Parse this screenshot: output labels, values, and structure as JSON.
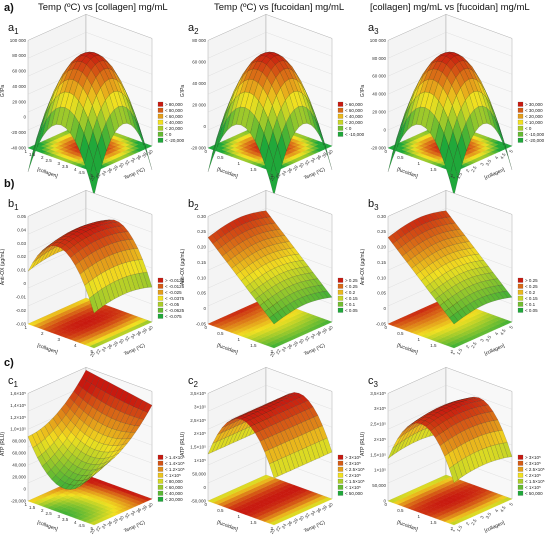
{
  "figure": {
    "section_a": "a)",
    "section_b": "b)",
    "section_c": "c)",
    "columns": [
      "Temp (ºC) vs [collagen] mg/mL",
      "Temp (ºC) vs [fucoidan] mg/mL",
      "[collagen] mg/mL vs [fucoidan] mg/mL"
    ]
  },
  "colors": {
    "high": "#c8190f",
    "mid": "#f2e020",
    "low": "#1fa83a",
    "mesh": "#222222"
  },
  "chart_data": [
    {
      "id": "a1",
      "label": "a",
      "sub": "1",
      "type": "surface",
      "shape": "dome",
      "zlabel": "G'/Pa",
      "xlabel": "[collagen]",
      "ylabel": "Temp (ºC)",
      "zticks": [
        "100 000",
        "80 000",
        "60 000",
        "40 000",
        "20 000",
        "0",
        "-20 000",
        "-40 000"
      ],
      "xticks": [
        "1",
        "1.5",
        "2",
        "2.5",
        "3",
        "3.5",
        "4",
        "4.5",
        "5"
      ],
      "yticks": [
        "20",
        "22",
        "24",
        "26",
        "28",
        "30",
        "32",
        "34",
        "36",
        "38",
        "40"
      ],
      "legend": [
        "> 80,000",
        "< 80,000",
        "< 60,000",
        "< 40,000",
        "< 20,000",
        "< 0",
        "< -20,000"
      ]
    },
    {
      "id": "a2",
      "label": "a",
      "sub": "2",
      "type": "surface",
      "shape": "dome",
      "zlabel": "G'/Pa",
      "xlabel": "[fucoidan]",
      "ylabel": "Temp (ºC)",
      "zticks": [
        "80 000",
        "60 000",
        "40 000",
        "20 000",
        "0",
        "-20 000"
      ],
      "xticks": [
        "0",
        "0.5",
        "1",
        "1.5",
        "2"
      ],
      "yticks": [
        "20",
        "22",
        "24",
        "26",
        "28",
        "30",
        "32",
        "34",
        "36",
        "38",
        "40"
      ],
      "legend": [
        "> 60,000",
        "< 60,000",
        "< 40,000",
        "< 20,000",
        "< 0",
        "< -10,000"
      ]
    },
    {
      "id": "a3",
      "label": "a",
      "sub": "3",
      "type": "surface",
      "shape": "dome",
      "zlabel": "G'/Pa",
      "xlabel": "[fucoidan]",
      "ylabel": "[collagen]",
      "zticks": [
        "100 000",
        "80 000",
        "60 000",
        "40 000",
        "20 000",
        "0",
        "-20 000"
      ],
      "xticks": [
        "0",
        "0.5",
        "1",
        "1.5",
        "2"
      ],
      "yticks": [
        "1",
        "1.5",
        "2",
        "2.5",
        "3",
        "3.5",
        "4",
        "4.5",
        "5"
      ],
      "legend": [
        "> 30,000",
        "< 30,000",
        "< 20,000",
        "< 10,000",
        "< 0",
        "< -10,000",
        "< -20,000"
      ]
    },
    {
      "id": "b1",
      "label": "b",
      "sub": "1",
      "type": "surface",
      "shape": "ridge",
      "zlabel": "Anti-OX (μg/mL)",
      "xlabel": "[collagen]",
      "ylabel": "Temp (ºC)",
      "zticks": [
        "0.05",
        "0.04",
        "0.03",
        "0.02",
        "0.01",
        "0",
        "-0.01",
        "-0.02",
        "-0.03"
      ],
      "xticks": [
        "1",
        "2",
        "3",
        "4",
        "5"
      ],
      "yticks": [
        "20",
        "22",
        "24",
        "26",
        "28",
        "30",
        "32",
        "34",
        "36",
        "38",
        "40"
      ],
      "legend": [
        "> -0.0125",
        "< -0.0125",
        "< -0.025",
        "< -0.0375",
        "< -0.05",
        "< -0.0625",
        "< -0.075"
      ]
    },
    {
      "id": "b2",
      "label": "b",
      "sub": "2",
      "type": "surface",
      "shape": "ramp",
      "zlabel": "Anti-OX (μg/mL)",
      "xlabel": "[fucoidan]",
      "ylabel": "Temp (ºC)",
      "zticks": [
        "0.30",
        "0.25",
        "0.20",
        "0.15",
        "0.10",
        "0.05",
        "0",
        "-0.05"
      ],
      "xticks": [
        "0",
        "0.5",
        "1",
        "1.5",
        "2"
      ],
      "yticks": [
        "20",
        "22",
        "24",
        "26",
        "28",
        "30",
        "32",
        "34",
        "36",
        "38",
        "40"
      ],
      "legend": [
        "> 0.25",
        "< 0.25",
        "< 0.2",
        "< 0.15",
        "< 0.1",
        "< 0.05"
      ]
    },
    {
      "id": "b3",
      "label": "b",
      "sub": "3",
      "type": "surface",
      "shape": "ramp",
      "zlabel": "Anti-OX (μg/mL)",
      "xlabel": "[fucoidan]",
      "ylabel": "[collagen]",
      "zticks": [
        "0.30",
        "0.25",
        "0.20",
        "0.15",
        "0.10",
        "0.05",
        "0",
        "-0.05"
      ],
      "xticks": [
        "0",
        "0.5",
        "1",
        "1.5",
        "2"
      ],
      "yticks": [
        "1",
        "1.5",
        "2",
        "2.5",
        "3",
        "3.5",
        "4",
        "4.5",
        "5"
      ],
      "legend": [
        "> 0.25",
        "< 0.25",
        "< 0.2",
        "< 0.15",
        "< 0.1",
        "< 0.05"
      ]
    },
    {
      "id": "c1",
      "label": "c",
      "sub": "1",
      "type": "surface",
      "shape": "saddle",
      "zlabel": "ATP (RLU)",
      "xlabel": "[collagen]",
      "ylabel": "Temp (ºC)",
      "zticks": [
        "1,6×10⁵",
        "1,4×10⁵",
        "1,2×10⁵",
        "1,0×10⁵",
        "80,000",
        "60,000",
        "40,000",
        "20,000",
        "0",
        "-20,000"
      ],
      "xticks": [
        "1",
        "1.5",
        "2",
        "2.5",
        "3",
        "3.5",
        "4",
        "4.5",
        "5"
      ],
      "yticks": [
        "20",
        "22",
        "24",
        "26",
        "28",
        "30",
        "32",
        "34",
        "36",
        "38",
        "40"
      ],
      "legend": [
        "> 1.4×10⁵",
        "< 1.4×10⁵",
        "< 1.2×10⁵",
        "< 1×10⁵",
        "< 80,000",
        "< 60,000",
        "< 40,000",
        "< 20,000"
      ]
    },
    {
      "id": "c2",
      "label": "c",
      "sub": "2",
      "type": "surface",
      "shape": "arch",
      "zlabel": "ATP (RLU)",
      "xlabel": "[fucoidan]",
      "ylabel": "Temp (ºC)",
      "zticks": [
        "3,5×10⁵",
        "3×10⁵",
        "2,5×10⁵",
        "2×10⁵",
        "1,5×10⁵",
        "1×10⁵",
        "50,000",
        "0",
        "-50,000"
      ],
      "xticks": [
        "0",
        "0.5",
        "1",
        "1.5",
        "2"
      ],
      "yticks": [
        "20",
        "22",
        "24",
        "26",
        "28",
        "30",
        "32",
        "34",
        "36",
        "38",
        "40"
      ],
      "legend": [
        "> 3×10⁵",
        "< 3×10⁵",
        "< 2.5×10⁵",
        "< 2×10⁵",
        "< 1.5×10⁵",
        "< 1×10⁵",
        "< 50,000"
      ]
    },
    {
      "id": "c3",
      "label": "c",
      "sub": "3",
      "type": "surface",
      "shape": "archdome",
      "zlabel": "ATP (RLU)",
      "xlabel": "[fucoidan]",
      "ylabel": "[collagen]",
      "zticks": [
        "3,5×10⁵",
        "3×10⁵",
        "2,5×10⁵",
        "2×10⁵",
        "1,5×10⁵",
        "1×10⁵",
        "50,000",
        "0"
      ],
      "xticks": [
        "0",
        "0.5",
        "1",
        "1.5",
        "2"
      ],
      "yticks": [
        "1",
        "1.5",
        "2",
        "2.5",
        "3",
        "3.5",
        "4",
        "4.5",
        "5"
      ],
      "legend": [
        "> 3×10⁵",
        "< 3×10⁵",
        "< 2.5×10⁵",
        "< 2×10⁵",
        "< 1.5×10⁵",
        "< 1×10⁵",
        "< 50,000"
      ]
    }
  ]
}
